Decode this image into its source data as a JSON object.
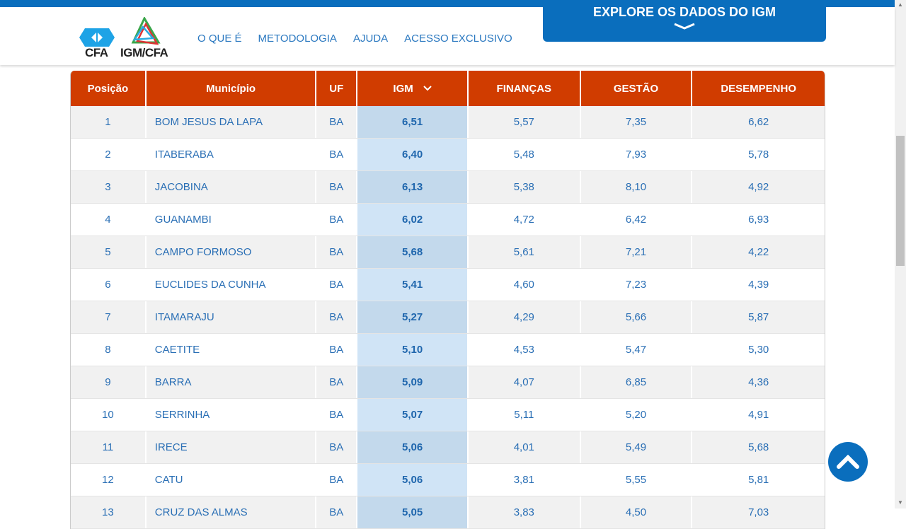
{
  "header": {
    "logo_cfa": "CFA",
    "logo_igm": "IGM/CFA",
    "nav": [
      "O QUE É",
      "METODOLOGIA",
      "AJUDA",
      "ACESSO EXCLUSIVO"
    ],
    "explore_label": "EXPLORE OS DADOS DO IGM"
  },
  "table": {
    "columns": [
      "Posição",
      "Município",
      "UF",
      "IGM",
      "FINANÇAS",
      "GESTÃO",
      "DESEMPENHO"
    ],
    "rows": [
      [
        "1",
        "BOM JESUS DA LAPA",
        "BA",
        "6,51",
        "5,57",
        "7,35",
        "6,62"
      ],
      [
        "2",
        "ITABERABA",
        "BA",
        "6,40",
        "5,48",
        "7,93",
        "5,78"
      ],
      [
        "3",
        "JACOBINA",
        "BA",
        "6,13",
        "5,38",
        "8,10",
        "4,92"
      ],
      [
        "4",
        "GUANAMBI",
        "BA",
        "6,02",
        "4,72",
        "6,42",
        "6,93"
      ],
      [
        "5",
        "CAMPO FORMOSO",
        "BA",
        "5,68",
        "5,61",
        "7,21",
        "4,22"
      ],
      [
        "6",
        "EUCLIDES DA CUNHA",
        "BA",
        "5,41",
        "4,60",
        "7,23",
        "4,39"
      ],
      [
        "7",
        "ITAMARAJU",
        "BA",
        "5,27",
        "4,29",
        "5,66",
        "5,87"
      ],
      [
        "8",
        "CAETITE",
        "BA",
        "5,10",
        "4,53",
        "5,47",
        "5,30"
      ],
      [
        "9",
        "BARRA",
        "BA",
        "5,09",
        "4,07",
        "6,85",
        "4,36"
      ],
      [
        "10",
        "SERRINHA",
        "BA",
        "5,07",
        "5,11",
        "5,20",
        "4,91"
      ],
      [
        "11",
        "IRECE",
        "BA",
        "5,06",
        "4,01",
        "5,49",
        "5,68"
      ],
      [
        "12",
        "CATU",
        "BA",
        "5,06",
        "3,81",
        "5,55",
        "5,81"
      ],
      [
        "13",
        "CRUZ DAS ALMAS",
        "BA",
        "5,05",
        "3,83",
        "4,50",
        "7,03"
      ]
    ]
  },
  "colors": {
    "brand_blue": "#0a6ebd",
    "header_orange": "#d03c00"
  }
}
